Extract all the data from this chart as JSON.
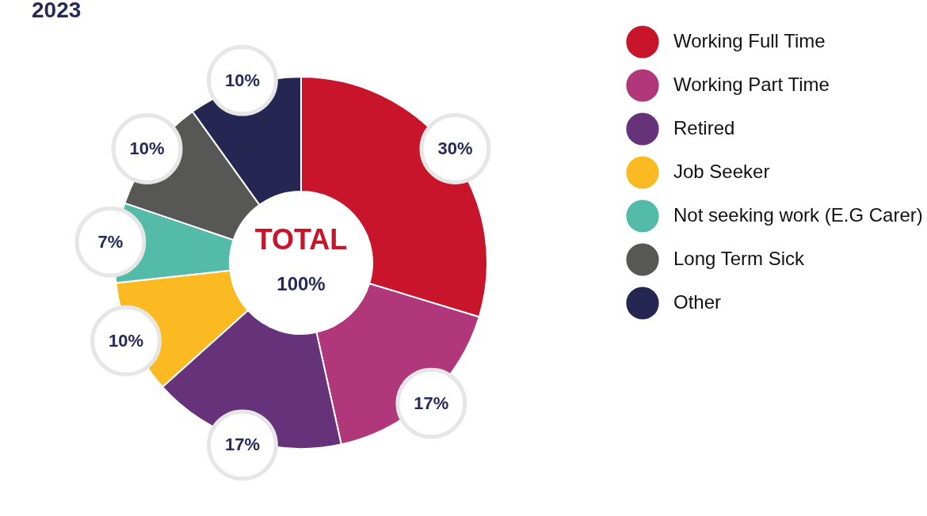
{
  "chart_data": {
    "type": "donut",
    "title": "2023",
    "categories": [
      "Working Full Time",
      "Working Part Time",
      "Retired",
      "Job Seeker",
      "Not seeking work (E.G Carer)",
      "Long Term Sick",
      "Other"
    ],
    "values": [
      30,
      17,
      17,
      10,
      7,
      10,
      10
    ],
    "value_labels": [
      "30%",
      "17%",
      "17%",
      "10%",
      "7%",
      "10%",
      "10%"
    ],
    "colors": [
      "#c8152b",
      "#b0377a",
      "#66327a",
      "#fbba22",
      "#55bba9",
      "#575756",
      "#252752"
    ],
    "annotations": [
      "TOTAL",
      "100%"
    ],
    "legend": "right"
  }
}
